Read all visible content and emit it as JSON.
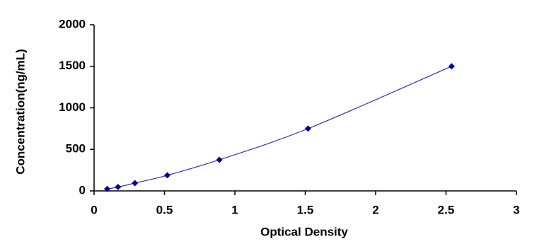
{
  "chart_data": {
    "type": "scatter",
    "x_label": "Optical Density",
    "y_label": "Concentration(ng/mL)",
    "x": [
      0.093,
      0.17,
      0.29,
      0.52,
      0.89,
      1.52,
      2.54
    ],
    "values": [
      23,
      47,
      94,
      188,
      375,
      750,
      1500
    ],
    "color": "#00008b",
    "line_color": "#3333aa",
    "xlim": [
      0,
      3
    ],
    "ylim": [
      0,
      2000
    ],
    "xticks": [
      0,
      0.5,
      1,
      1.5,
      2,
      2.5,
      3
    ],
    "yticks": [
      0,
      500,
      1000,
      1500,
      2000
    ],
    "grid": false
  }
}
